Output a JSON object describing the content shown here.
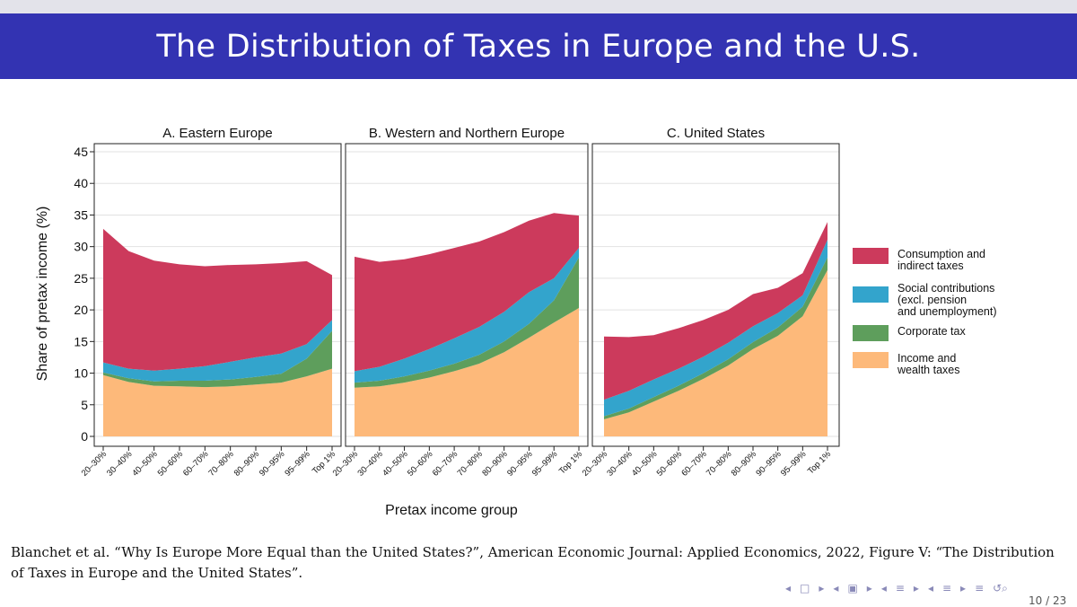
{
  "slide": {
    "title": "The Distribution of Taxes in Europe and the U.S.",
    "citation": "Blanchet et al. “Why Is Europe More Equal than the United States?”, American Economic Journal: Applied Economics, 2022, Figure V: “The Distribution of Taxes in Europe and the United States”.",
    "page_number": "10 / 23"
  },
  "navigation": {
    "icons": [
      "nav-left-arrow-icon",
      "nav-frame-icon",
      "nav-section-icon",
      "nav-subsection-icon",
      "nav-align-icon",
      "nav-search-icon"
    ],
    "glyphs": [
      "◂",
      "□",
      "▸",
      "◂",
      "▣",
      "▸",
      "◂",
      "≡",
      "▸",
      "◂",
      "≡",
      "▸",
      "≡",
      "↺⌕"
    ]
  },
  "chart_data": {
    "type": "area",
    "stacked": true,
    "ylabel": "Share of pretax income (%)",
    "xlabel": "Pretax income group",
    "ylim": [
      0,
      45
    ],
    "yticks": [
      "0",
      "5",
      "10",
      "15",
      "20",
      "25",
      "30",
      "35",
      "40",
      "45"
    ],
    "categories": [
      "20–30%",
      "30–40%",
      "40–50%",
      "50–60%",
      "60–70%",
      "70–80%",
      "80–90%",
      "90–95%",
      "95–99%",
      "Top 1%"
    ],
    "grid": true,
    "legend_position": "right",
    "series_order": [
      "Income and wealth taxes",
      "Corporate tax",
      "Social contributions (excl. pension and unemployment)",
      "Consumption and indirect taxes"
    ],
    "colors": {
      "Income and wealth taxes": "#fdb97a",
      "Corporate tax": "#5e9e5c",
      "Social contributions (excl. pension and unemployment)": "#33a4cc",
      "Consumption and indirect taxes": "#cc3a5c"
    },
    "legend": [
      {
        "series": "Consumption and indirect taxes",
        "lines": [
          "Consumption and",
          "indirect taxes"
        ]
      },
      {
        "series": "Social contributions (excl. pension and unemployment)",
        "lines": [
          "Social contributions",
          "(excl. pension",
          "and unemployment)"
        ]
      },
      {
        "series": "Corporate tax",
        "lines": [
          "Corporate tax"
        ]
      },
      {
        "series": "Income and wealth taxes",
        "lines": [
          "Income and",
          "wealth taxes"
        ]
      }
    ],
    "panels": [
      {
        "title": "A. Eastern Europe",
        "series": [
          {
            "name": "Income and wealth taxes",
            "values": [
              9.7,
              8.6,
              8.0,
              7.9,
              7.8,
              7.9,
              8.2,
              8.5,
              9.5,
              10.7
            ]
          },
          {
            "name": "Corporate tax",
            "values": [
              0.4,
              0.6,
              0.7,
              0.9,
              1.0,
              1.1,
              1.2,
              1.4,
              2.8,
              6.0
            ]
          },
          {
            "name": "Social contributions (excl. pension and unemployment)",
            "values": [
              1.6,
              1.5,
              1.7,
              1.9,
              2.3,
              2.8,
              3.1,
              3.2,
              2.3,
              1.7
            ]
          },
          {
            "name": "Consumption and indirect taxes",
            "values": [
              21.1,
              18.6,
              17.4,
              16.5,
              15.8,
              15.3,
              14.7,
              14.3,
              13.1,
              7.1
            ]
          }
        ]
      },
      {
        "title": "B. Western and Northern Europe",
        "series": [
          {
            "name": "Income and wealth taxes",
            "values": [
              7.7,
              7.9,
              8.5,
              9.3,
              10.3,
              11.5,
              13.3,
              15.6,
              18.0,
              20.3
            ]
          },
          {
            "name": "Corporate tax",
            "values": [
              0.8,
              0.9,
              1.0,
              1.1,
              1.2,
              1.4,
              1.7,
              2.2,
              3.5,
              8.0
            ]
          },
          {
            "name": "Social contributions (excl. pension and unemployment)",
            "values": [
              1.8,
              2.2,
              2.8,
              3.4,
              4.0,
              4.4,
              4.7,
              5.0,
              3.5,
              1.5
            ]
          },
          {
            "name": "Consumption and indirect taxes",
            "values": [
              18.1,
              16.6,
              15.7,
              15.0,
              14.3,
              13.5,
              12.6,
              11.3,
              10.3,
              5.1
            ]
          }
        ]
      },
      {
        "title": "C. United States",
        "series": [
          {
            "name": "Income and wealth taxes",
            "values": [
              2.7,
              3.8,
              5.5,
              7.2,
              9.1,
              11.2,
              13.8,
              15.9,
              19.0,
              26.3
            ]
          },
          {
            "name": "Corporate tax",
            "values": [
              0.5,
              0.6,
              0.7,
              0.8,
              0.9,
              1.0,
              1.1,
              1.3,
              1.5,
              2.0
            ]
          },
          {
            "name": "Social contributions (excl. pension and unemployment)",
            "values": [
              2.6,
              2.8,
              2.8,
              2.7,
              2.6,
              2.6,
              2.5,
              2.3,
              1.8,
              2.8
            ]
          },
          {
            "name": "Consumption and indirect taxes",
            "values": [
              10.0,
              8.5,
              7.0,
              6.4,
              5.8,
              5.2,
              5.1,
              4.0,
              3.5,
              2.8
            ]
          }
        ]
      }
    ]
  }
}
